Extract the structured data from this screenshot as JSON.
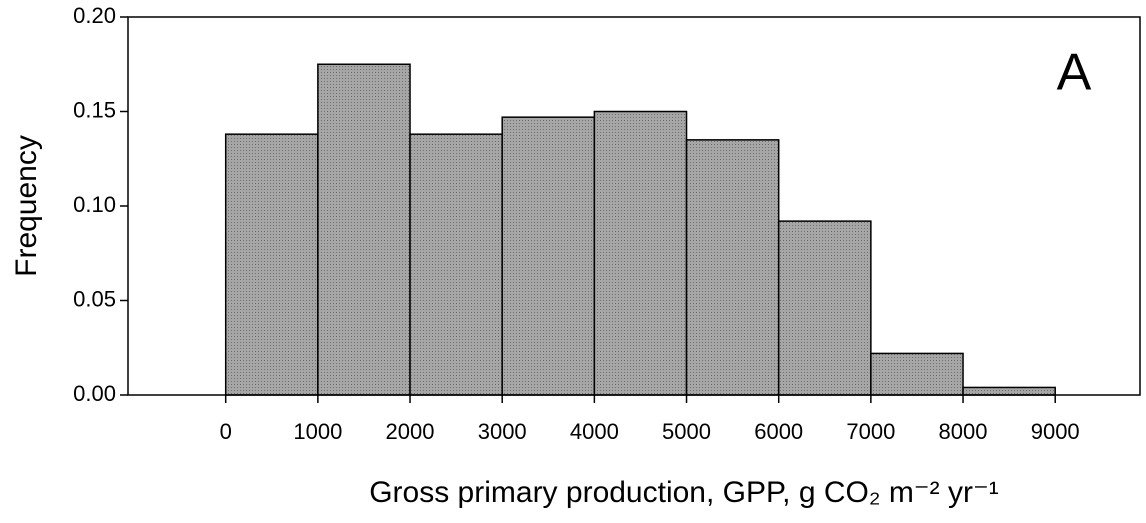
{
  "chart_data": {
    "type": "histogram",
    "annotation": "A",
    "xlabel": "Gross primary production, GPP, g CO₂ m⁻² yr⁻¹",
    "ylabel": "Frequency",
    "bins": [
      0,
      1000,
      2000,
      3000,
      4000,
      5000,
      6000,
      7000,
      8000,
      9000
    ],
    "counts": [
      0.138,
      0.175,
      0.138,
      0.147,
      0.15,
      0.135,
      0.092,
      0.022,
      0.004
    ],
    "color": "#a6a6a6",
    "xlim": [
      -1060,
      9920
    ],
    "xticks": [
      0,
      1000,
      2000,
      3000,
      4000,
      5000,
      6000,
      7000,
      8000,
      9000
    ],
    "ylim": [
      0,
      0.2
    ],
    "yticks": [
      {
        "value": 0,
        "label": "0.00"
      },
      {
        "value": 0.05,
        "label": "0.05"
      },
      {
        "value": 0.1,
        "label": "0.10"
      },
      {
        "value": 0.15,
        "label": "0.15"
      },
      {
        "value": 0.2,
        "label": "0.20"
      }
    ]
  }
}
